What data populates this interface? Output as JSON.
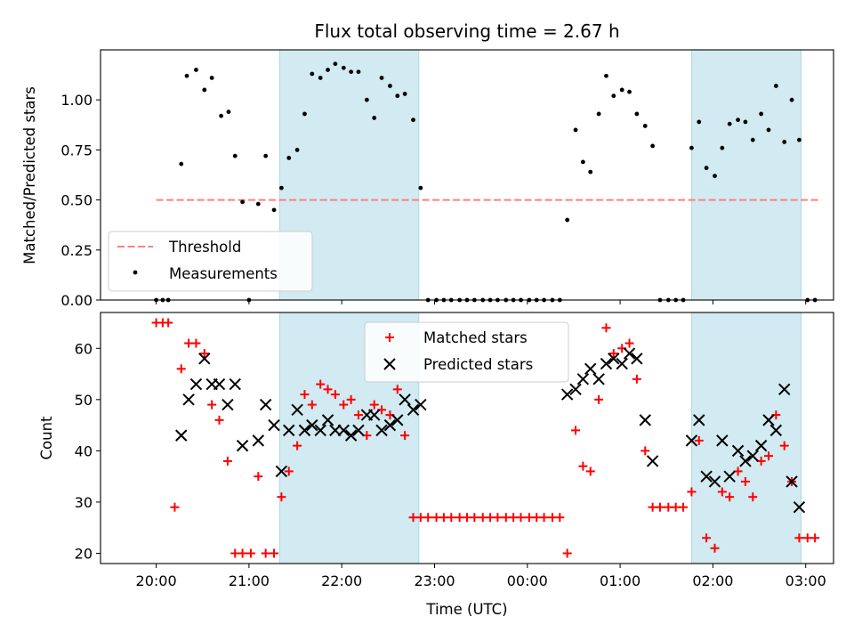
{
  "chart_data": [
    {
      "type": "scatter",
      "title": "Flux total observing time = 2.67 h",
      "xlabel": "",
      "ylabel": "Matched/Predicted stars",
      "xlim": [
        -0.6,
        7.3
      ],
      "ylim": [
        0,
        1.25
      ],
      "x_ticks": [
        0,
        1,
        2,
        3,
        4,
        5,
        6,
        7
      ],
      "y_ticks": [
        0.0,
        0.25,
        0.5,
        0.75,
        1.0
      ],
      "y_tick_labels": [
        "0.00",
        "0.25",
        "0.50",
        "0.75",
        "1.00"
      ],
      "shaded_intervals": [
        [
          1.33,
          2.83
        ],
        [
          5.77,
          6.95
        ]
      ],
      "threshold": {
        "name": "Threshold",
        "value": 0.5,
        "x_range": [
          0,
          7.17
        ],
        "color": "#ff7f7f"
      },
      "series": [
        {
          "name": "Measurements",
          "color": "#000000",
          "points": [
            [
              0.0,
              0
            ],
            [
              0.07,
              0
            ],
            [
              0.13,
              0
            ],
            [
              0.27,
              0.68
            ],
            [
              0.33,
              1.12
            ],
            [
              0.43,
              1.15
            ],
            [
              0.52,
              1.05
            ],
            [
              0.6,
              1.11
            ],
            [
              0.7,
              0.92
            ],
            [
              0.78,
              0.94
            ],
            [
              0.85,
              0.72
            ],
            [
              0.93,
              0.49
            ],
            [
              1.0,
              0
            ],
            [
              1.1,
              0.48
            ],
            [
              1.18,
              0.72
            ],
            [
              1.27,
              0.45
            ],
            [
              1.35,
              0.56
            ],
            [
              1.43,
              0.71
            ],
            [
              1.52,
              0.75
            ],
            [
              1.6,
              0.93
            ],
            [
              1.68,
              1.13
            ],
            [
              1.77,
              1.11
            ],
            [
              1.85,
              1.15
            ],
            [
              1.93,
              1.18
            ],
            [
              2.02,
              1.16
            ],
            [
              2.1,
              1.14
            ],
            [
              2.18,
              1.14
            ],
            [
              2.27,
              1.0
            ],
            [
              2.35,
              0.91
            ],
            [
              2.43,
              1.11
            ],
            [
              2.52,
              1.07
            ],
            [
              2.6,
              1.02
            ],
            [
              2.68,
              1.03
            ],
            [
              2.77,
              0.9
            ],
            [
              2.85,
              0.56
            ],
            [
              2.93,
              0
            ],
            [
              3.02,
              0
            ],
            [
              3.1,
              0
            ],
            [
              3.18,
              0
            ],
            [
              3.27,
              0
            ],
            [
              3.35,
              0
            ],
            [
              3.43,
              0
            ],
            [
              3.52,
              0
            ],
            [
              3.6,
              0
            ],
            [
              3.68,
              0
            ],
            [
              3.77,
              0
            ],
            [
              3.85,
              0
            ],
            [
              3.93,
              0
            ],
            [
              4.02,
              0
            ],
            [
              4.1,
              0
            ],
            [
              4.18,
              0
            ],
            [
              4.27,
              0
            ],
            [
              4.35,
              0
            ],
            [
              4.43,
              0.4
            ],
            [
              4.52,
              0.85
            ],
            [
              4.6,
              0.69
            ],
            [
              4.68,
              0.64
            ],
            [
              4.77,
              0.93
            ],
            [
              4.85,
              1.12
            ],
            [
              4.93,
              1.02
            ],
            [
              5.02,
              1.05
            ],
            [
              5.1,
              1.04
            ],
            [
              5.18,
              0.93
            ],
            [
              5.27,
              0.87
            ],
            [
              5.35,
              0.77
            ],
            [
              5.43,
              0
            ],
            [
              5.52,
              0
            ],
            [
              5.6,
              0
            ],
            [
              5.68,
              0
            ],
            [
              5.77,
              0.76
            ],
            [
              5.85,
              0.89
            ],
            [
              5.93,
              0.66
            ],
            [
              6.02,
              0.62
            ],
            [
              6.1,
              0.76
            ],
            [
              6.18,
              0.88
            ],
            [
              6.27,
              0.9
            ],
            [
              6.35,
              0.89
            ],
            [
              6.43,
              0.8
            ],
            [
              6.52,
              0.93
            ],
            [
              6.6,
              0.85
            ],
            [
              6.68,
              1.07
            ],
            [
              6.77,
              0.79
            ],
            [
              6.85,
              1.0
            ],
            [
              6.93,
              0.8
            ],
            [
              7.02,
              0
            ],
            [
              7.1,
              0
            ]
          ]
        }
      ],
      "legend": {
        "position": "lower left"
      }
    },
    {
      "type": "scatter",
      "title": "",
      "xlabel": "Time (UTC)",
      "ylabel": "Count",
      "xlim": [
        -0.6,
        7.3
      ],
      "ylim": [
        18,
        67
      ],
      "x_ticks": [
        0,
        1,
        2,
        3,
        4,
        5,
        6,
        7
      ],
      "x_tick_labels": [
        "20:00",
        "21:00",
        "22:00",
        "23:00",
        "00:00",
        "01:00",
        "02:00",
        "03:00"
      ],
      "y_ticks": [
        20,
        30,
        40,
        50,
        60
      ],
      "y_tick_labels": [
        "20",
        "30",
        "40",
        "50",
        "60"
      ],
      "shaded_intervals": [
        [
          1.33,
          2.83
        ],
        [
          5.77,
          6.95
        ]
      ],
      "series": [
        {
          "name": "Matched stars",
          "marker": "plus",
          "color": "#ff0000",
          "points": [
            [
              0.0,
              65
            ],
            [
              0.07,
              65
            ],
            [
              0.13,
              65
            ],
            [
              0.2,
              29
            ],
            [
              0.27,
              56
            ],
            [
              0.35,
              61
            ],
            [
              0.43,
              61
            ],
            [
              0.52,
              59
            ],
            [
              0.6,
              49
            ],
            [
              0.68,
              46
            ],
            [
              0.77,
              38
            ],
            [
              0.85,
              20
            ],
            [
              0.93,
              20
            ],
            [
              1.02,
              20
            ],
            [
              1.1,
              35
            ],
            [
              1.18,
              20
            ],
            [
              1.27,
              20
            ],
            [
              1.35,
              31
            ],
            [
              1.43,
              36
            ],
            [
              1.52,
              41
            ],
            [
              1.6,
              51
            ],
            [
              1.68,
              49
            ],
            [
              1.77,
              53
            ],
            [
              1.85,
              52
            ],
            [
              1.93,
              51
            ],
            [
              2.02,
              49
            ],
            [
              2.1,
              50
            ],
            [
              2.18,
              47
            ],
            [
              2.27,
              43
            ],
            [
              2.35,
              49
            ],
            [
              2.43,
              48
            ],
            [
              2.52,
              47
            ],
            [
              2.6,
              52
            ],
            [
              2.68,
              43
            ],
            [
              2.77,
              27
            ],
            [
              2.85,
              27
            ],
            [
              2.93,
              27
            ],
            [
              3.02,
              27
            ],
            [
              3.1,
              27
            ],
            [
              3.18,
              27
            ],
            [
              3.27,
              27
            ],
            [
              3.35,
              27
            ],
            [
              3.43,
              27
            ],
            [
              3.52,
              27
            ],
            [
              3.6,
              27
            ],
            [
              3.68,
              27
            ],
            [
              3.77,
              27
            ],
            [
              3.85,
              27
            ],
            [
              3.93,
              27
            ],
            [
              4.02,
              27
            ],
            [
              4.1,
              27
            ],
            [
              4.18,
              27
            ],
            [
              4.27,
              27
            ],
            [
              4.35,
              27
            ],
            [
              4.43,
              20
            ],
            [
              4.52,
              44
            ],
            [
              4.6,
              37
            ],
            [
              4.68,
              36
            ],
            [
              4.77,
              50
            ],
            [
              4.85,
              64
            ],
            [
              4.93,
              59
            ],
            [
              5.02,
              60
            ],
            [
              5.1,
              61
            ],
            [
              5.18,
              54
            ],
            [
              5.27,
              40
            ],
            [
              5.35,
              29
            ],
            [
              5.43,
              29
            ],
            [
              5.52,
              29
            ],
            [
              5.6,
              29
            ],
            [
              5.68,
              29
            ],
            [
              5.77,
              32
            ],
            [
              5.85,
              42
            ],
            [
              5.93,
              23
            ],
            [
              6.02,
              21
            ],
            [
              6.1,
              32
            ],
            [
              6.18,
              31
            ],
            [
              6.27,
              36
            ],
            [
              6.35,
              34
            ],
            [
              6.43,
              31
            ],
            [
              6.52,
              38
            ],
            [
              6.6,
              39
            ],
            [
              6.68,
              47
            ],
            [
              6.77,
              41
            ],
            [
              6.85,
              34
            ],
            [
              6.93,
              23
            ],
            [
              7.02,
              23
            ],
            [
              7.1,
              23
            ]
          ]
        },
        {
          "name": "Predicted stars",
          "marker": "x",
          "color": "#000000",
          "points": [
            [
              0.27,
              43
            ],
            [
              0.35,
              50
            ],
            [
              0.43,
              53
            ],
            [
              0.52,
              58
            ],
            [
              0.6,
              53
            ],
            [
              0.68,
              53
            ],
            [
              0.77,
              49
            ],
            [
              0.85,
              53
            ],
            [
              0.93,
              41
            ],
            [
              1.1,
              42
            ],
            [
              1.18,
              49
            ],
            [
              1.27,
              45
            ],
            [
              1.35,
              36
            ],
            [
              1.43,
              44
            ],
            [
              1.52,
              48
            ],
            [
              1.6,
              44
            ],
            [
              1.68,
              45
            ],
            [
              1.77,
              44
            ],
            [
              1.85,
              46
            ],
            [
              1.93,
              44
            ],
            [
              2.02,
              44
            ],
            [
              2.1,
              43
            ],
            [
              2.18,
              44
            ],
            [
              2.27,
              47
            ],
            [
              2.35,
              47
            ],
            [
              2.43,
              44
            ],
            [
              2.52,
              45
            ],
            [
              2.6,
              46
            ],
            [
              2.68,
              50
            ],
            [
              2.77,
              48
            ],
            [
              2.85,
              49
            ],
            [
              4.43,
              51
            ],
            [
              4.52,
              52
            ],
            [
              4.6,
              54
            ],
            [
              4.68,
              56
            ],
            [
              4.77,
              54
            ],
            [
              4.85,
              57
            ],
            [
              4.93,
              58
            ],
            [
              5.02,
              57
            ],
            [
              5.1,
              59
            ],
            [
              5.18,
              58
            ],
            [
              5.27,
              46
            ],
            [
              5.35,
              38
            ],
            [
              5.77,
              42
            ],
            [
              5.85,
              46
            ],
            [
              5.93,
              35
            ],
            [
              6.02,
              34
            ],
            [
              6.1,
              42
            ],
            [
              6.18,
              35
            ],
            [
              6.27,
              40
            ],
            [
              6.35,
              38
            ],
            [
              6.43,
              39
            ],
            [
              6.52,
              41
            ],
            [
              6.6,
              46
            ],
            [
              6.68,
              44
            ],
            [
              6.77,
              52
            ],
            [
              6.85,
              34
            ],
            [
              6.93,
              29
            ]
          ]
        }
      ],
      "legend": {
        "position": "upper center"
      }
    }
  ],
  "colors": {
    "shade": "#add8e6",
    "threshold": "#ff7f7f",
    "matched": "#ff0000",
    "predicted": "#000000",
    "measurements": "#000000"
  }
}
